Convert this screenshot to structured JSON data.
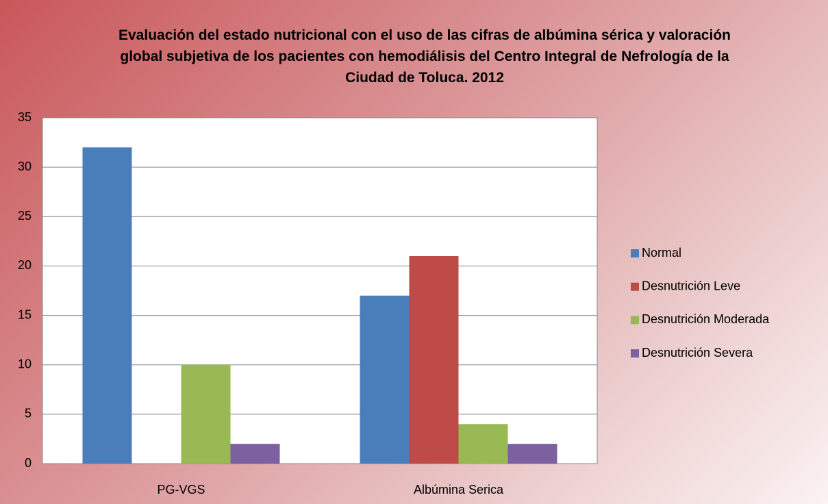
{
  "chart_data": {
    "type": "bar",
    "title": "Evaluación del estado nutricional con el uso de las cifras de albúmina sérica y valoración global subjetiva de los pacientes con hemodiálisis del Centro Integral de Nefrología de la Ciudad de Toluca. 2012",
    "categories": [
      "PG-VGS",
      "Albúmina Serica"
    ],
    "series": [
      {
        "name": "Normal",
        "color": "#4a7ebb",
        "values": [
          32,
          17
        ]
      },
      {
        "name": "Desnutrición Leve",
        "color": "#be4b48",
        "values": [
          0,
          21
        ]
      },
      {
        "name": "Desnutrición Moderada",
        "color": "#98b954",
        "values": [
          10,
          4
        ]
      },
      {
        "name": "Desnutrición Severa",
        "color": "#7d60a0",
        "values": [
          2,
          2
        ]
      }
    ],
    "ylim": [
      0,
      35
    ],
    "yticks": [
      0,
      5,
      10,
      15,
      20,
      25,
      30,
      35
    ],
    "grid": true,
    "legend": "right"
  }
}
